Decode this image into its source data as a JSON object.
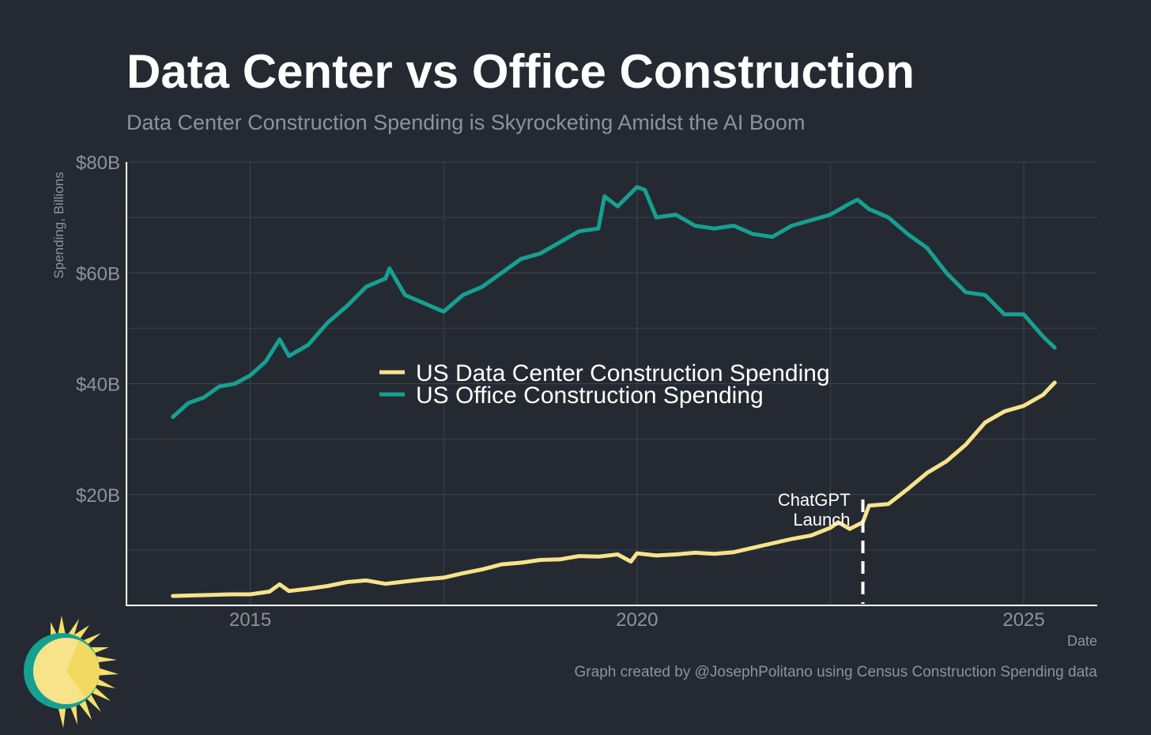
{
  "header": {
    "title": "Data Center vs Office Construction",
    "subtitle": "Data Center Construction Spending is Skyrocketing Amidst the AI Boom"
  },
  "footer": {
    "caption": "Graph created by @JosephPolitano using Census Construction Spending data"
  },
  "chart_data": {
    "type": "line",
    "xlabel": "Date",
    "ylabel": "Spending, Billions",
    "xlim": [
      2013.4,
      2025.95
    ],
    "ylim": [
      0,
      80
    ],
    "x_ticks": [
      2015,
      2020,
      2025
    ],
    "x_tick_labels": [
      "2015",
      "2020",
      "2025"
    ],
    "y_ticks": [
      20,
      40,
      60,
      80
    ],
    "y_tick_labels": [
      "$20B",
      "$40B",
      "$60B",
      "$80B"
    ],
    "y_minor_gridlines": [
      10,
      30,
      50,
      70
    ],
    "grid": true,
    "legend_position": "center",
    "annotation": {
      "x": 2022.92,
      "label_lines": [
        "ChatGPT",
        "Launch"
      ],
      "style": "dashed-vertical"
    },
    "series": [
      {
        "name": "US Data Center Construction Spending",
        "color": "#f7e38a",
        "x": [
          2014.0,
          2014.25,
          2014.5,
          2014.75,
          2015.0,
          2015.25,
          2015.38,
          2015.5,
          2015.75,
          2016.0,
          2016.25,
          2016.5,
          2016.75,
          2017.0,
          2017.25,
          2017.5,
          2017.75,
          2018.0,
          2018.25,
          2018.5,
          2018.75,
          2019.0,
          2019.25,
          2019.5,
          2019.75,
          2019.92,
          2020.0,
          2020.25,
          2020.5,
          2020.75,
          2021.0,
          2021.25,
          2021.5,
          2021.75,
          2022.0,
          2022.25,
          2022.5,
          2022.6,
          2022.75,
          2022.92,
          2023.0,
          2023.25,
          2023.5,
          2023.75,
          2024.0,
          2024.25,
          2024.5,
          2024.75,
          2025.0,
          2025.25,
          2025.4
        ],
        "values": [
          1.7,
          1.8,
          1.9,
          2.0,
          2.0,
          2.5,
          3.8,
          2.6,
          3.0,
          3.5,
          4.2,
          4.5,
          3.9,
          4.3,
          4.7,
          5.0,
          5.8,
          6.5,
          7.4,
          7.7,
          8.2,
          8.3,
          8.9,
          8.8,
          9.2,
          7.9,
          9.4,
          9.0,
          9.2,
          9.5,
          9.3,
          9.6,
          10.4,
          11.2,
          12.0,
          12.6,
          14.0,
          15.0,
          13.8,
          15.0,
          18.0,
          18.3,
          21.0,
          23.9,
          26.0,
          29.0,
          33.0,
          35.0,
          36.0,
          38.0,
          40.2
        ]
      },
      {
        "name": "US Office Construction Spending",
        "color": "#16a092",
        "x": [
          2014.0,
          2014.2,
          2014.4,
          2014.6,
          2014.8,
          2015.0,
          2015.2,
          2015.38,
          2015.5,
          2015.75,
          2016.0,
          2016.25,
          2016.5,
          2016.75,
          2016.8,
          2017.0,
          2017.25,
          2017.5,
          2017.75,
          2018.0,
          2018.25,
          2018.5,
          2018.75,
          2019.0,
          2019.25,
          2019.5,
          2019.58,
          2019.75,
          2020.0,
          2020.1,
          2020.25,
          2020.5,
          2020.75,
          2021.0,
          2021.25,
          2021.5,
          2021.75,
          2022.0,
          2022.25,
          2022.5,
          2022.75,
          2022.85,
          2023.0,
          2023.25,
          2023.5,
          2023.75,
          2024.0,
          2024.25,
          2024.5,
          2024.75,
          2025.0,
          2025.25,
          2025.4
        ],
        "values": [
          34.0,
          36.5,
          37.5,
          39.5,
          40.0,
          41.5,
          44.0,
          48.0,
          45.0,
          47.0,
          51.0,
          54.0,
          57.5,
          59.0,
          60.8,
          56.0,
          54.5,
          53.0,
          56.0,
          57.5,
          60.0,
          62.5,
          63.5,
          65.5,
          67.5,
          68.0,
          73.8,
          72.0,
          75.5,
          75.0,
          70.0,
          70.5,
          68.5,
          68.0,
          68.5,
          67.0,
          66.5,
          68.5,
          69.5,
          70.5,
          72.5,
          73.2,
          71.5,
          70.0,
          67.0,
          64.5,
          60.0,
          56.5,
          56.0,
          52.5,
          52.5,
          48.5,
          46.5
        ]
      }
    ]
  },
  "logo": {
    "icon": "sun-logo-icon"
  }
}
